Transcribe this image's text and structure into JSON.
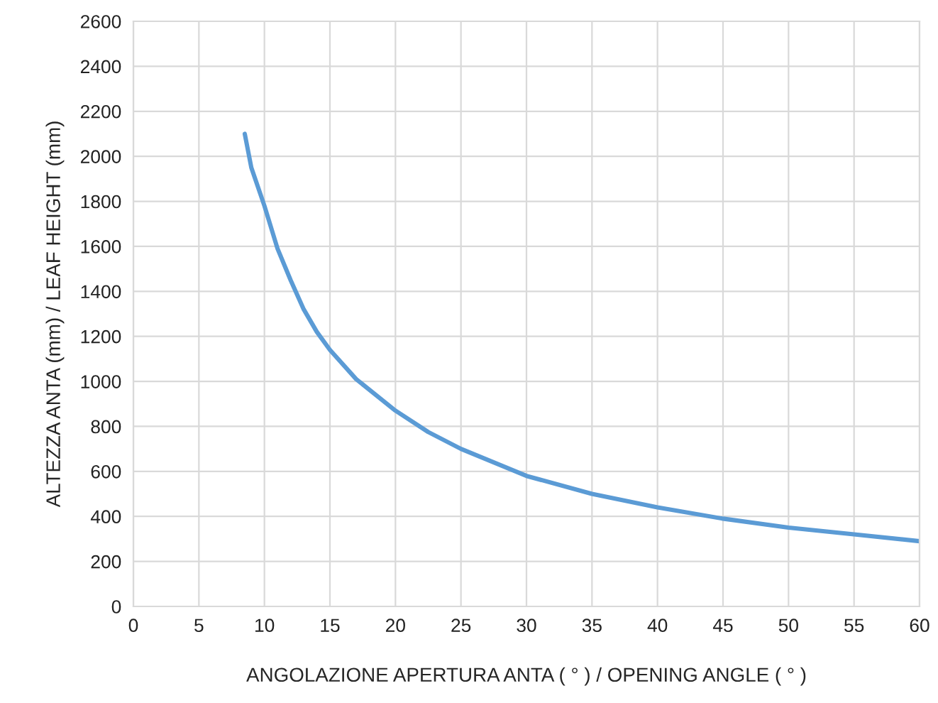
{
  "chart_data": {
    "type": "line",
    "xlabel": "ANGOLAZIONE APERTURA ANTA ( ° ) / OPENING ANGLE ( ° )",
    "ylabel": "ALTEZZA ANTA (mm) / LEAF HEIGHT (mm)",
    "series": [
      {
        "color": "#5b9bd5",
        "x": [
          8.5,
          9,
          10,
          11,
          12,
          13,
          14,
          15,
          17,
          20,
          22.5,
          25,
          30,
          35,
          40,
          45,
          50,
          55,
          60
        ],
        "values": [
          2100,
          1950,
          1780,
          1590,
          1450,
          1320,
          1220,
          1140,
          1010,
          870,
          775,
          700,
          580,
          500,
          440,
          390,
          350,
          320,
          290
        ]
      }
    ],
    "xlim": [
      0,
      60
    ],
    "xticks": [
      0,
      5,
      10,
      15,
      20,
      25,
      30,
      35,
      40,
      45,
      50,
      55,
      60
    ],
    "ylim": [
      0,
      2600
    ],
    "yticks": [
      0,
      200,
      400,
      600,
      800,
      1000,
      1200,
      1400,
      1600,
      1800,
      2000,
      2200,
      2400,
      2600
    ],
    "grid": true,
    "line_style": "solid",
    "marker": "none"
  }
}
